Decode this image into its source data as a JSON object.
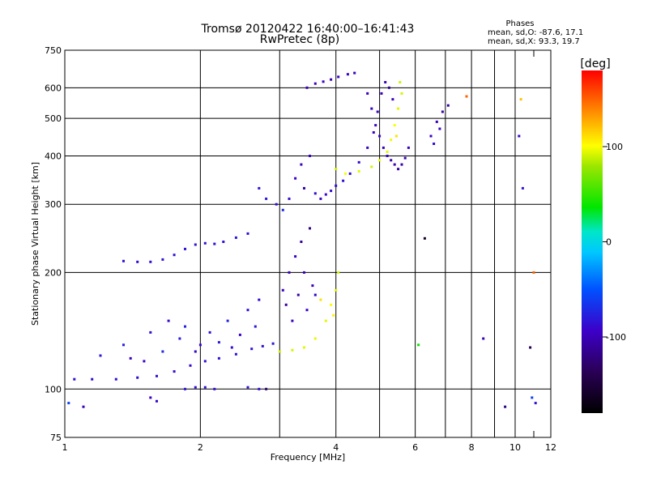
{
  "chart_data": {
    "type": "scatter",
    "title": "Tromsø 20120422 16:40:00–16:41:43",
    "subtitle": "RwPretec (8p)",
    "phases": {
      "title": "Phases",
      "line1": "mean, sd,O: -87.6, 17.1",
      "line2": "mean, sd,X:  93.3, 19.7"
    },
    "xlabel": "Frequency [MHz]",
    "ylabel": "Stationary phase Virtual Height [km]",
    "x_scale": "log",
    "y_scale": "log",
    "xlim": [
      1,
      12
    ],
    "ylim": [
      75,
      750
    ],
    "x_ticks": [
      {
        "value": 1,
        "label": "1",
        "major": true
      },
      {
        "value": 2,
        "label": "2",
        "major": true
      },
      {
        "value": 3,
        "label": "",
        "major": true
      },
      {
        "value": 4,
        "label": "4",
        "major": true
      },
      {
        "value": 5,
        "label": "",
        "major": true
      },
      {
        "value": 6,
        "label": "6",
        "major": true
      },
      {
        "value": 7,
        "label": "",
        "major": true
      },
      {
        "value": 8,
        "label": "8",
        "major": true
      },
      {
        "value": 9,
        "label": "",
        "major": true
      },
      {
        "value": 10,
        "label": "10",
        "major": true
      },
      {
        "value": 11,
        "label": "",
        "major": false
      },
      {
        "value": 12,
        "label": "12",
        "major": false
      }
    ],
    "y_ticks": [
      {
        "value": 75,
        "label": "75",
        "grid": false
      },
      {
        "value": 100,
        "label": "100",
        "grid": true
      },
      {
        "value": 200,
        "label": "200",
        "grid": true
      },
      {
        "value": 300,
        "label": "300",
        "grid": true
      },
      {
        "value": 400,
        "label": "400",
        "grid": true
      },
      {
        "value": 500,
        "label": "500",
        "grid": true
      },
      {
        "value": 600,
        "label": "600",
        "grid": true
      },
      {
        "value": 750,
        "label": "750",
        "grid": false
      }
    ],
    "grid": true,
    "colorbar": {
      "label": "[deg]",
      "range": [
        -180,
        180
      ],
      "ticks": [
        {
          "value": 100,
          "label": "100"
        },
        {
          "value": 0,
          "label": "0"
        },
        {
          "value": -100,
          "label": "-100"
        }
      ]
    },
    "series": [
      {
        "points": [
          [
            1.05,
            106,
            -85
          ],
          [
            1.15,
            106,
            -88
          ],
          [
            1.3,
            106,
            -90
          ],
          [
            1.45,
            107,
            -88
          ],
          [
            1.6,
            108,
            -86
          ],
          [
            1.75,
            111,
            -90
          ],
          [
            1.9,
            115,
            -88
          ],
          [
            2.05,
            118,
            -86
          ],
          [
            2.2,
            120,
            -84
          ],
          [
            2.4,
            123,
            -82
          ],
          [
            2.6,
            127,
            -84
          ],
          [
            2.75,
            129,
            -86
          ],
          [
            2.9,
            131,
            -80
          ],
          [
            1.2,
            122,
            -80
          ],
          [
            1.35,
            130,
            -75
          ],
          [
            1.5,
            118,
            -95
          ],
          [
            1.55,
            140,
            -85
          ],
          [
            1.65,
            125,
            -70
          ],
          [
            1.7,
            150,
            -90
          ],
          [
            1.8,
            135,
            -80
          ],
          [
            1.85,
            145,
            -75
          ],
          [
            2.0,
            130,
            -90
          ],
          [
            2.1,
            140,
            -85
          ],
          [
            2.2,
            132,
            -80
          ],
          [
            2.3,
            150,
            -75
          ],
          [
            2.45,
            138,
            -95
          ],
          [
            2.55,
            160,
            -85
          ],
          [
            2.65,
            145,
            -80
          ],
          [
            2.7,
            170,
            -90
          ],
          [
            1.4,
            120,
            -95
          ],
          [
            1.95,
            125,
            -92
          ],
          [
            2.35,
            128,
            -88
          ]
        ]
      },
      {
        "points": [
          [
            1.85,
            100,
            -85
          ],
          [
            1.95,
            101,
            -88
          ],
          [
            2.05,
            101,
            -86
          ],
          [
            2.15,
            100,
            -90
          ],
          [
            2.55,
            101,
            -85
          ],
          [
            2.7,
            100,
            -88
          ],
          [
            2.8,
            100,
            -130
          ],
          [
            1.55,
            95,
            -95
          ],
          [
            1.6,
            93,
            -92
          ],
          [
            1.02,
            92,
            -60
          ],
          [
            1.1,
            90,
            -100
          ]
        ]
      },
      {
        "points": [
          [
            1.35,
            214,
            -85
          ],
          [
            1.45,
            213,
            -88
          ],
          [
            1.55,
            213,
            -86
          ],
          [
            1.65,
            216,
            -84
          ],
          [
            1.75,
            222,
            -86
          ],
          [
            1.85,
            230,
            -84
          ],
          [
            1.95,
            236,
            -82
          ],
          [
            2.05,
            238,
            -85
          ],
          [
            2.15,
            237,
            -86
          ],
          [
            2.25,
            240,
            -84
          ],
          [
            2.4,
            246,
            -80
          ],
          [
            2.55,
            252,
            -86
          ]
        ]
      },
      {
        "points": [
          [
            2.7,
            330,
            -85
          ],
          [
            2.8,
            310,
            -80
          ],
          [
            2.95,
            300,
            -88
          ],
          [
            3.05,
            290,
            -70
          ],
          [
            3.15,
            310,
            -90
          ],
          [
            3.25,
            350,
            -95
          ],
          [
            3.35,
            380,
            -98
          ],
          [
            3.4,
            330,
            -110
          ],
          [
            3.5,
            400,
            -95
          ],
          [
            3.6,
            320,
            -90
          ],
          [
            3.7,
            310,
            -95
          ],
          [
            3.8,
            318,
            -92
          ],
          [
            3.9,
            325,
            -90
          ],
          [
            4.0,
            335,
            -88
          ],
          [
            4.15,
            345,
            -86
          ],
          [
            4.3,
            360,
            -88
          ],
          [
            4.5,
            385,
            -90
          ],
          [
            4.7,
            420,
            -92
          ],
          [
            4.85,
            460,
            -95
          ],
          [
            4.95,
            520,
            -98
          ],
          [
            5.05,
            580,
            -100
          ],
          [
            5.15,
            620,
            -96
          ],
          [
            5.25,
            600,
            -110
          ],
          [
            5.35,
            560,
            -100
          ]
        ]
      },
      {
        "points": [
          [
            3.45,
            600,
            -100
          ],
          [
            3.6,
            615,
            -98
          ],
          [
            3.75,
            622,
            -95
          ],
          [
            3.9,
            630,
            -100
          ],
          [
            4.05,
            640,
            -96
          ],
          [
            4.25,
            650,
            -95
          ],
          [
            4.4,
            655,
            -100
          ]
        ]
      },
      {
        "points": [
          [
            4.7,
            580,
            -100
          ],
          [
            4.8,
            530,
            -98
          ],
          [
            4.9,
            480,
            -96
          ],
          [
            5.0,
            450,
            -94
          ],
          [
            5.1,
            420,
            -100
          ],
          [
            5.2,
            400,
            -98
          ],
          [
            5.3,
            390,
            -105
          ],
          [
            5.4,
            380,
            -100
          ],
          [
            5.5,
            370,
            -110
          ],
          [
            5.6,
            380,
            -105
          ],
          [
            5.7,
            395,
            -100
          ],
          [
            5.8,
            420,
            -98
          ]
        ]
      },
      {
        "points": [
          [
            4.0,
            370,
            90
          ],
          [
            4.2,
            360,
            100
          ],
          [
            4.5,
            365,
            95
          ],
          [
            4.8,
            375,
            92
          ],
          [
            5.0,
            390,
            96
          ],
          [
            5.2,
            410,
            95
          ],
          [
            5.3,
            440,
            98
          ],
          [
            5.4,
            480,
            100
          ],
          [
            5.5,
            530,
            94
          ],
          [
            5.6,
            580,
            92
          ],
          [
            5.55,
            620,
            90
          ],
          [
            5.45,
            450,
            110
          ]
        ]
      },
      {
        "points": [
          [
            3.05,
            180,
            -95
          ],
          [
            3.1,
            165,
            -110
          ],
          [
            3.15,
            200,
            -100
          ],
          [
            3.2,
            150,
            -98
          ],
          [
            3.25,
            220,
            -95
          ],
          [
            3.3,
            175,
            -105
          ],
          [
            3.35,
            240,
            -110
          ],
          [
            3.4,
            200,
            -100
          ],
          [
            3.45,
            160,
            -95
          ],
          [
            3.5,
            260,
            -120
          ],
          [
            3.55,
            185,
            -100
          ],
          [
            3.6,
            175,
            -98
          ]
        ]
      },
      {
        "points": [
          [
            3.0,
            125,
            90
          ],
          [
            3.2,
            126,
            92
          ],
          [
            3.4,
            128,
            95
          ],
          [
            3.6,
            135,
            96
          ],
          [
            3.8,
            150,
            95
          ],
          [
            3.9,
            165,
            100
          ],
          [
            4.0,
            180,
            94
          ],
          [
            4.05,
            200,
            92
          ],
          [
            3.7,
            170,
            110
          ],
          [
            3.95,
            155,
            105
          ]
        ]
      },
      {
        "points": [
          [
            6.5,
            450,
            -95
          ],
          [
            6.7,
            490,
            -100
          ],
          [
            6.9,
            520,
            -105
          ],
          [
            7.1,
            540,
            -110
          ],
          [
            6.6,
            430,
            -90
          ],
          [
            6.8,
            470,
            -98
          ]
        ]
      },
      {
        "points": [
          [
            6.1,
            130,
            40
          ],
          [
            6.3,
            245,
            -160
          ],
          [
            7.8,
            570,
            150
          ],
          [
            8.5,
            135,
            -100
          ],
          [
            9.5,
            90,
            -120
          ],
          [
            10.2,
            450,
            -90
          ],
          [
            10.3,
            560,
            120
          ],
          [
            10.4,
            330,
            -80
          ],
          [
            10.8,
            128,
            -140
          ],
          [
            11.0,
            200,
            150
          ],
          [
            11.1,
            92,
            -85
          ],
          [
            10.9,
            95,
            -60
          ]
        ]
      }
    ]
  }
}
